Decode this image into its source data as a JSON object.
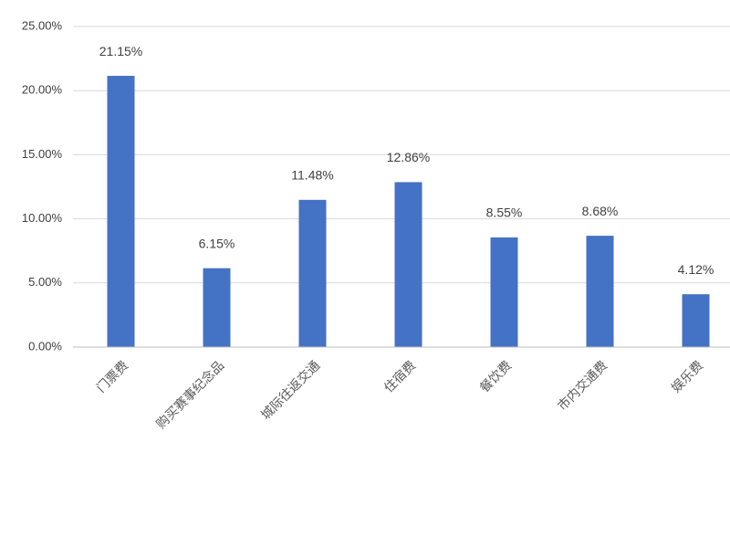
{
  "chart_data": {
    "type": "bar",
    "categories": [
      "门票费",
      "购买赛事纪念品",
      "城际往返交通",
      "住宿费",
      "餐饮费",
      "市内交通费",
      "娱乐费"
    ],
    "values": [
      21.15,
      6.15,
      11.48,
      12.86,
      8.55,
      8.68,
      4.12
    ],
    "value_labels": [
      "21.15%",
      "6.15%",
      "11.48%",
      "12.86%",
      "8.55%",
      "8.68%",
      "4.12%"
    ],
    "color": "#4472c4",
    "ylim": [
      0,
      25
    ],
    "yticks": [
      {
        "value": 0,
        "label": "0.00%"
      },
      {
        "value": 5,
        "label": "5.00%"
      },
      {
        "value": 10,
        "label": "10.00%"
      },
      {
        "value": 15,
        "label": "15.00%"
      },
      {
        "value": 20,
        "label": "20.00%"
      },
      {
        "value": 25,
        "label": "25.00%"
      }
    ],
    "grid": true
  }
}
